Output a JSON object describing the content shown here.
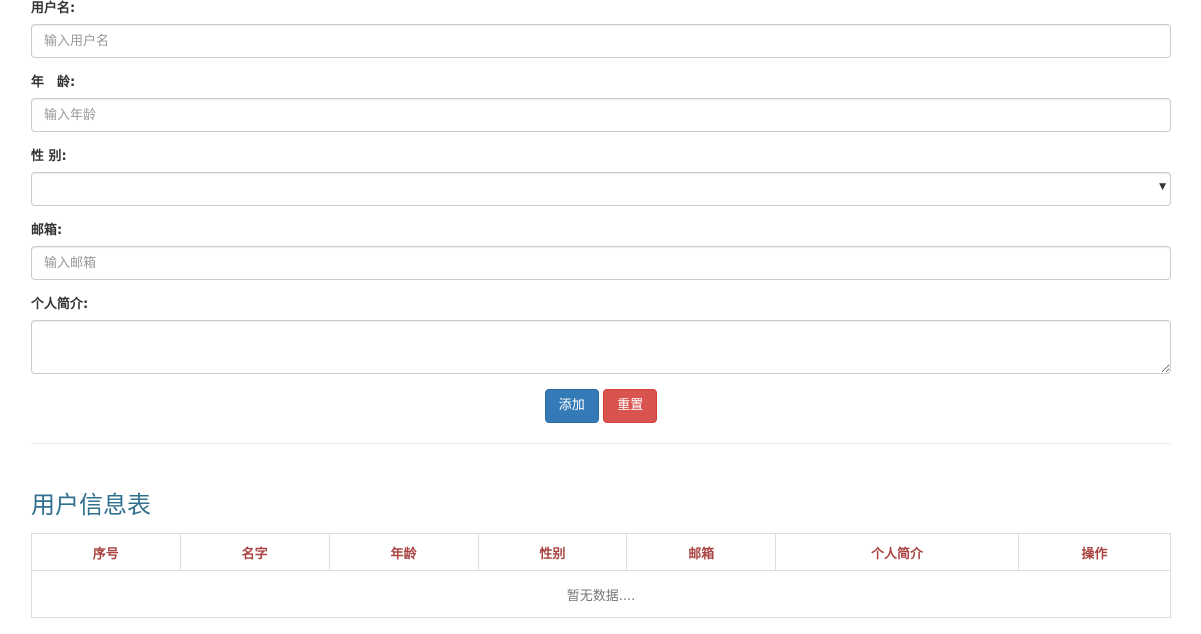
{
  "form": {
    "username": {
      "label": "用户名:",
      "placeholder": "输入用户名",
      "value": ""
    },
    "age": {
      "label": "年　龄:",
      "placeholder": "输入年龄",
      "value": ""
    },
    "gender": {
      "label": "性 别:",
      "selected": ""
    },
    "email": {
      "label": "邮箱:",
      "placeholder": "输入邮箱",
      "value": ""
    },
    "bio": {
      "label": "个人简介:",
      "value": ""
    },
    "add_label": "添加",
    "reset_label": "重置"
  },
  "table": {
    "title": "用户信息表",
    "columns": [
      "序号",
      "名字",
      "年龄",
      "性别",
      "邮箱",
      "个人简介",
      "操作"
    ],
    "empty_text": "暂无数据...."
  },
  "colors": {
    "primary": "#337ab7",
    "danger": "#d9534f",
    "title": "#31708f",
    "header_text": "#a94442"
  }
}
